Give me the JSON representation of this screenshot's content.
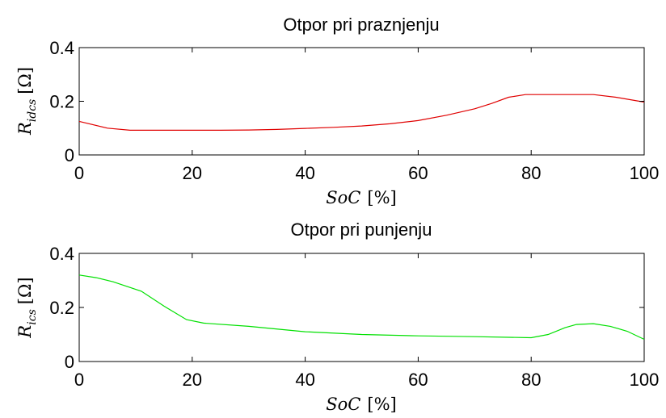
{
  "chart_data": [
    {
      "type": "line",
      "title": "Otpor pri praznjenju",
      "xlabel": "SoC",
      "xunit": "[%]",
      "ylabel": "R",
      "ylabel_sub": "idcs",
      "yunit": "[Ω]",
      "xlim": [
        0,
        100
      ],
      "ylim": [
        0,
        0.4
      ],
      "xticks": [
        "0",
        "20",
        "40",
        "60",
        "80",
        "100"
      ],
      "yticks": [
        "0",
        "0.2",
        "0.4"
      ],
      "grid": false,
      "color": "#e00000",
      "x": [
        0,
        5,
        9,
        15,
        20,
        25,
        30,
        35,
        40,
        45,
        50,
        55,
        60,
        65,
        70,
        73,
        76,
        79,
        85,
        91,
        95,
        100
      ],
      "y": [
        0.125,
        0.1,
        0.092,
        0.092,
        0.092,
        0.092,
        0.093,
        0.095,
        0.099,
        0.103,
        0.108,
        0.116,
        0.128,
        0.148,
        0.172,
        0.192,
        0.215,
        0.225,
        0.225,
        0.225,
        0.215,
        0.197
      ]
    },
    {
      "type": "line",
      "title": "Otpor pri punjenju",
      "xlabel": "SoC",
      "xunit": "[%]",
      "ylabel": "R",
      "ylabel_sub": "ics",
      "yunit": "[Ω]",
      "xlim": [
        0,
        100
      ],
      "ylim": [
        0,
        0.4
      ],
      "xticks": [
        "0",
        "20",
        "40",
        "60",
        "80",
        "100"
      ],
      "yticks": [
        "0",
        "0.2",
        "0.4"
      ],
      "grid": false,
      "color": "#00e000",
      "x": [
        0,
        3,
        6,
        11,
        15,
        19,
        22,
        30,
        40,
        50,
        60,
        70,
        80,
        83,
        86,
        88,
        91,
        94,
        97,
        100
      ],
      "y": [
        0.32,
        0.31,
        0.295,
        0.26,
        0.205,
        0.155,
        0.142,
        0.13,
        0.11,
        0.1,
        0.095,
        0.092,
        0.088,
        0.1,
        0.125,
        0.137,
        0.14,
        0.13,
        0.112,
        0.082
      ]
    }
  ]
}
